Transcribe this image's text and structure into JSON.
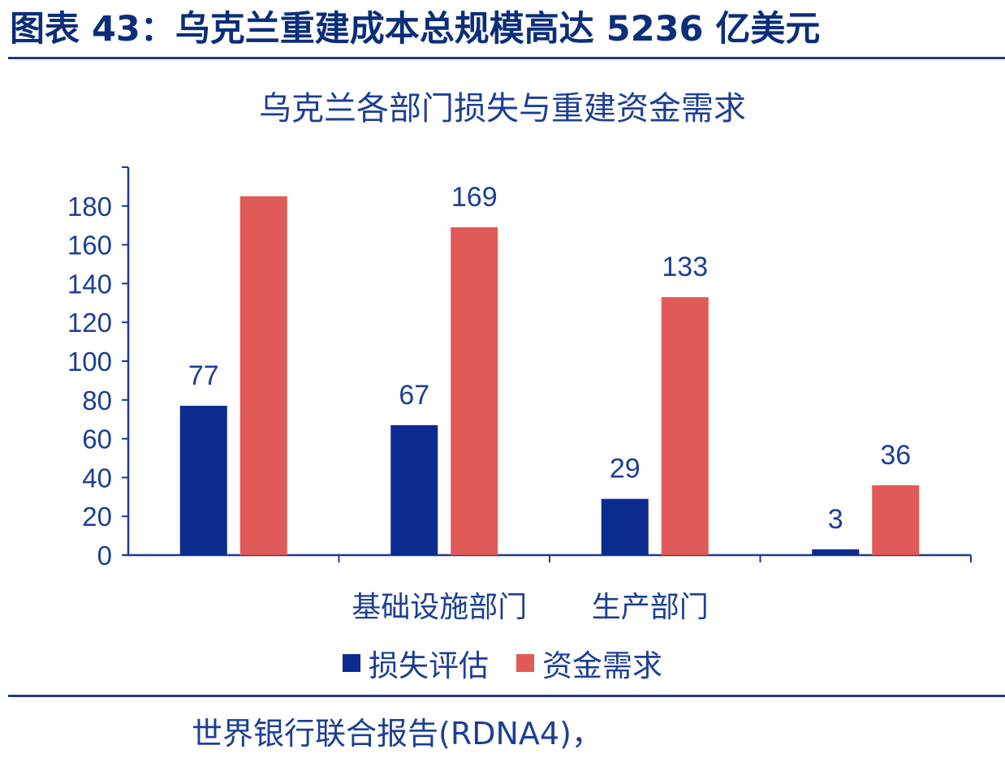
{
  "figure_title": "图表 43：乌克兰重建成本总规模高达 5236 亿美元",
  "source_label": "",
  "source_text": "世界银行联合报告(RDNA4)，",
  "colors": {
    "title": "#0b2e7a",
    "text": "#1c3f94",
    "rule": "#1f3b86",
    "series_loss": "#0d2b8f",
    "series_need": "#e05a57"
  },
  "chart_data": {
    "type": "bar",
    "title": "乌克兰各部门损失与重建资金需求",
    "xlabel": "",
    "ylabel": "",
    "ylim": [
      0,
      200
    ],
    "yticks": [
      0,
      20,
      40,
      60,
      80,
      100,
      120,
      140,
      160,
      180
    ],
    "categories": [
      "",
      "基础设施部门",
      "生产部门",
      ""
    ],
    "series": [
      {
        "name": "损失评估",
        "values": [
          77,
          67,
          29,
          3
        ],
        "data_labels": [
          "77",
          "67",
          "29",
          "3"
        ]
      },
      {
        "name": "资金需求",
        "values": [
          185,
          169,
          133,
          36
        ],
        "data_labels": [
          "",
          "169",
          "133",
          "36"
        ]
      }
    ],
    "legend_position": "bottom",
    "grid": false
  }
}
